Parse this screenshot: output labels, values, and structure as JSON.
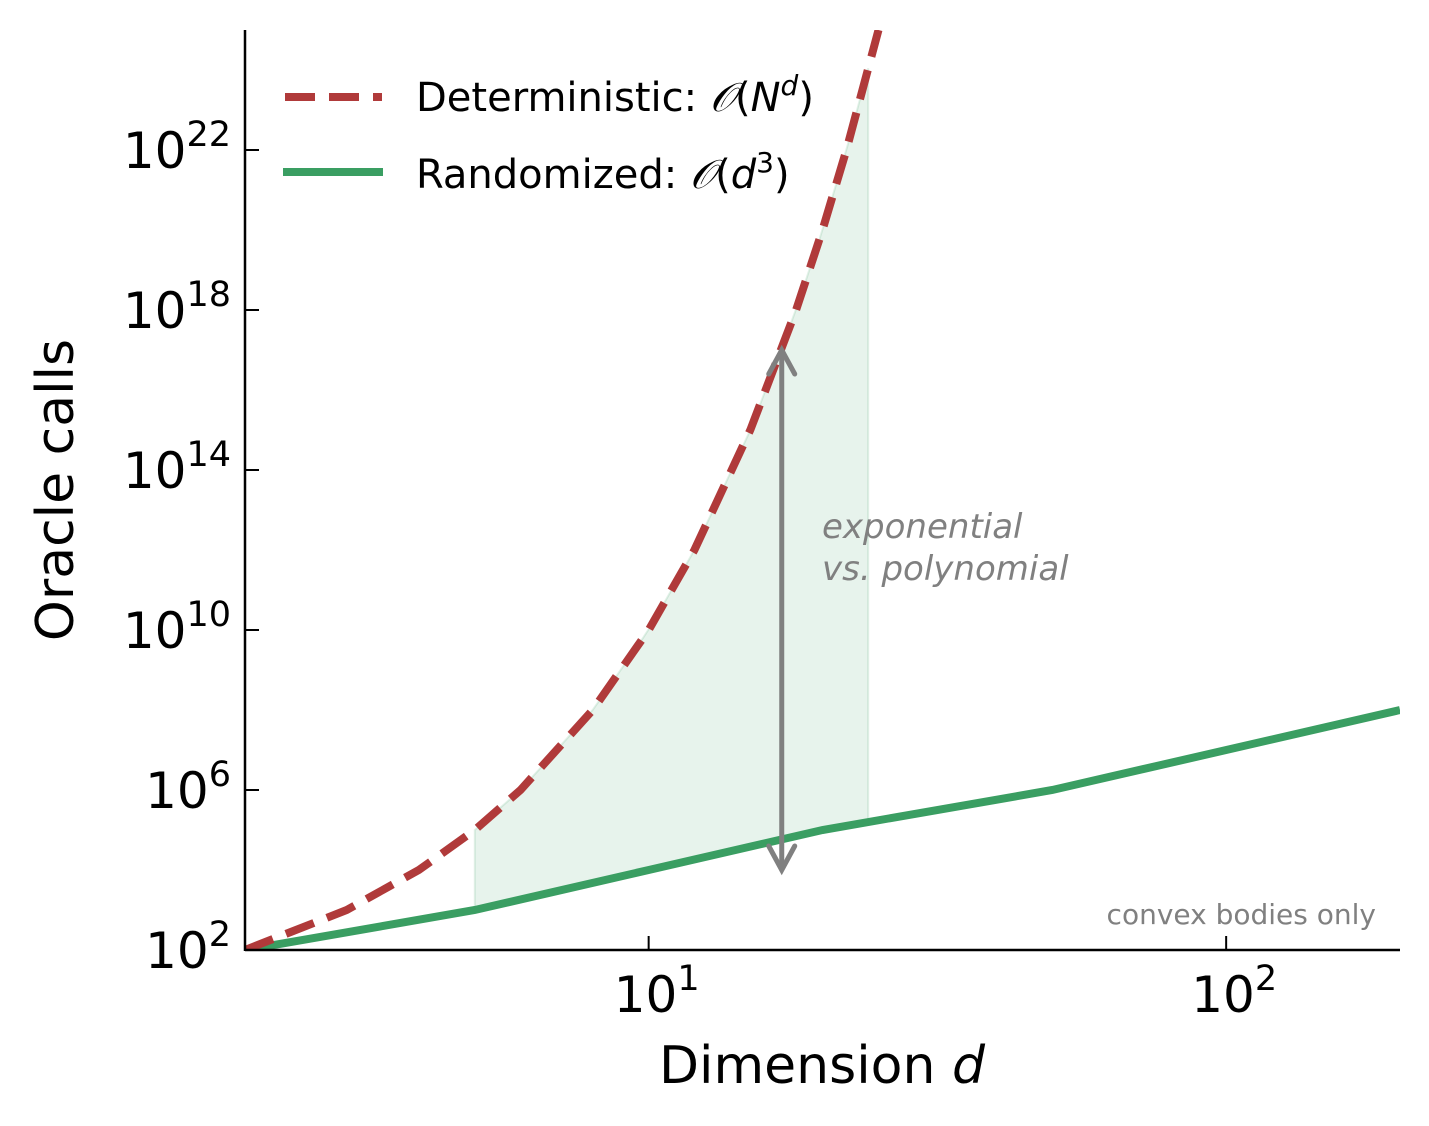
{
  "chart_data": {
    "type": "line",
    "x_scale": "log",
    "y_scale": "log",
    "xlim": [
      2,
      200
    ],
    "ylim": [
      100,
      1e+25
    ],
    "xlabel": "Dimension ",
    "xlabel_var": "d",
    "ylabel": "Oracle calls",
    "x_ticks": [
      {
        "value": 10,
        "base": "10",
        "exp": "1"
      },
      {
        "value": 100,
        "base": "10",
        "exp": "2"
      }
    ],
    "y_ticks": [
      {
        "value": 100.0,
        "base": "10",
        "exp": "2"
      },
      {
        "value": 1000000.0,
        "base": "10",
        "exp": "6"
      },
      {
        "value": 10000000000.0,
        "base": "10",
        "exp": "10"
      },
      {
        "value": 100000000000000.0,
        "base": "10",
        "exp": "14"
      },
      {
        "value": 1e+18,
        "base": "10",
        "exp": "18"
      },
      {
        "value": 1e+22,
        "base": "10",
        "exp": "22"
      }
    ],
    "series": [
      {
        "name": "Deterministic",
        "legend_prefix": "Deterministic: ",
        "legend_O": "𝒪",
        "legend_open": "(",
        "legend_base": "N",
        "legend_exp": "d",
        "legend_close": ")",
        "formula": "N^d",
        "color": "#b03a3a",
        "style": "dashed",
        "x": [
          2,
          3,
          4,
          5,
          6,
          8,
          10,
          12,
          15,
          18,
          20,
          22,
          25
        ],
        "y": [
          100.0,
          1000.0,
          10000.0,
          100000.0,
          1000000.0,
          100000000.0,
          10000000000.0,
          1000000000000.0,
          1000000000000000.0,
          1e+18,
          1e+20,
          1e+22,
          1e+25
        ]
      },
      {
        "name": "Randomized",
        "legend_prefix": "Randomized: ",
        "legend_O": "𝒪",
        "legend_open": "(",
        "legend_base": "d",
        "legend_exp": "3",
        "legend_close": ")",
        "formula": "d^3",
        "color": "#3a9e62",
        "style": "solid",
        "x": [
          2,
          5,
          10,
          20,
          50,
          100,
          200
        ],
        "y": [
          100.0,
          1000.0,
          10000.0,
          100000.0,
          1000000.0,
          10000000.0,
          100000000.0
        ]
      }
    ],
    "shaded_region": {
      "x_from": 5,
      "x_to": 24,
      "between": [
        "Deterministic",
        "Randomized"
      ],
      "color": "#3a9e62"
    },
    "arrow": {
      "x": 17,
      "y_from": 10000.0,
      "y_to": 1e+17,
      "color": "#808080"
    },
    "annotations": [
      {
        "text": "exponential",
        "x": 19,
        "y": 5000000000000.0
      },
      {
        "text": "vs. polynomial",
        "x": 19,
        "y": 400000000000.0
      }
    ],
    "footnote": "convex bodies only",
    "legend_position": "top-left"
  }
}
